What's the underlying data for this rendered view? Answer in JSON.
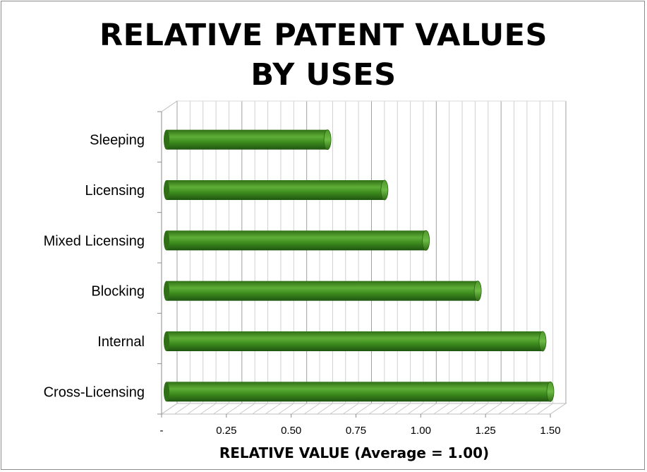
{
  "chart_data": {
    "type": "bar",
    "orientation": "horizontal",
    "title_line1": "RELATIVE PATENT VALUES",
    "title_line2": "BY USES",
    "xlabel": "RELATIVE VALUE (Average = 1.00)",
    "categories": [
      "Sleeping",
      "Licensing",
      "Mixed Licensing",
      "Blocking",
      "Internal",
      "Cross-Licensing"
    ],
    "values": [
      0.64,
      0.86,
      1.02,
      1.22,
      1.47,
      1.5
    ],
    "xlim": [
      0,
      1.5
    ],
    "x_ticks": [
      {
        "value": 0,
        "label": "-"
      },
      {
        "value": 0.25,
        "label": "0.25"
      },
      {
        "value": 0.5,
        "label": "0.50"
      },
      {
        "value": 0.75,
        "label": "0.75"
      },
      {
        "value": 1.0,
        "label": "1.00"
      },
      {
        "value": 1.25,
        "label": "1.25"
      },
      {
        "value": 1.5,
        "label": "1.50"
      }
    ],
    "bar_color": "#3f8f1f",
    "grid": true
  }
}
